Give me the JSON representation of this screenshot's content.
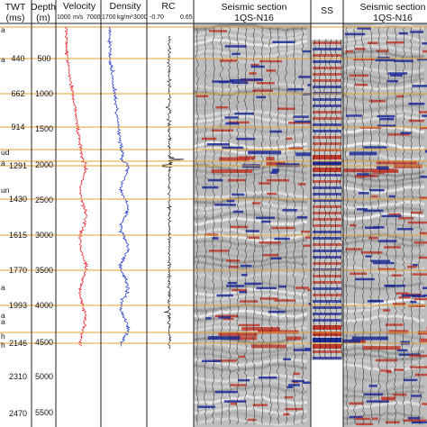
{
  "headers": {
    "twt": "TWT",
    "twt_unit": "(ms)",
    "depth": "Depth",
    "depth_unit": "(m)",
    "velocity": "Velocity",
    "density": "Density",
    "rc": "RC",
    "seismic_left_line1": "Seismic section",
    "seismic_left_line2": "1QS-N16",
    "ss": "SS",
    "seismic_right_line1": "Seismic section",
    "seismic_right_line2": "1QS-N16"
  },
  "scales": {
    "velocity_min": "1000",
    "velocity_unit": "m/s",
    "velocity_max": "7000",
    "density_min": "1700",
    "density_unit": "kg/m³",
    "density_max": "3000",
    "rc_min": "-0.70",
    "rc_max": "0.65"
  },
  "left_edge_labels": [
    "a",
    "a",
    "ud",
    "a",
    "un",
    "a",
    "a",
    "a",
    "h",
    "h"
  ],
  "chart_data": {
    "type": "well-tie",
    "twt_ticks_ms": [
      "440",
      "662",
      "914",
      "1291",
      "1430",
      "1615",
      "1770",
      "1993",
      "2146",
      "2310",
      "2470"
    ],
    "depth_ticks_m": [
      "500",
      "1000",
      "1500",
      "2000",
      "2500",
      "3000",
      "3500",
      "4000",
      "4500",
      "5000",
      "5500"
    ],
    "tracks": [
      "Velocity",
      "Density",
      "RC",
      "Seismic section",
      "SS",
      "Seismic section"
    ],
    "colors": {
      "velocity_log": "#e8202a",
      "density_log": "#1f36c9",
      "rc_log": "#111111",
      "horizon_lines": "#e3a032",
      "seismic_peak": "#1b2a9a",
      "seismic_trough": "#c0392b",
      "seismic_background": "#bdbdbd"
    }
  }
}
